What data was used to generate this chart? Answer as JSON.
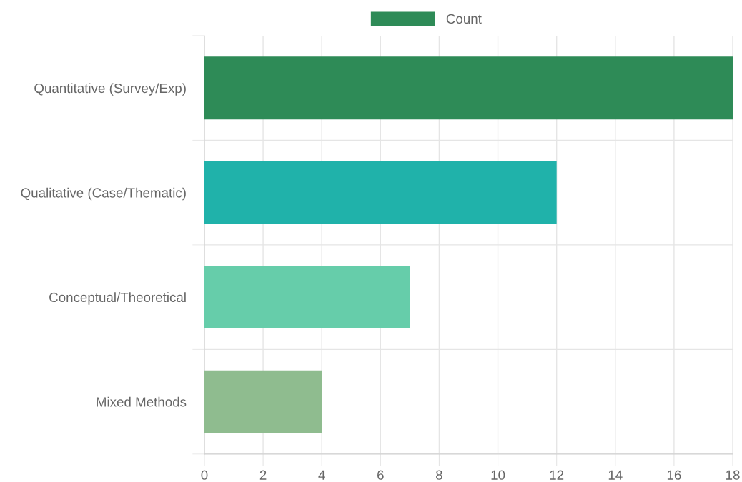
{
  "chart_data": {
    "type": "bar",
    "orientation": "horizontal",
    "categories": [
      "Quantitative (Survey/Exp)",
      "Qualitative (Case/Thematic)",
      "Conceptual/Theoretical",
      "Mixed Methods"
    ],
    "series": [
      {
        "name": "Count",
        "colors": [
          "#2e8b57",
          "#20b2aa",
          "#66cdaa",
          "#8fbc8f"
        ],
        "values": [
          18,
          12,
          7,
          4
        ]
      }
    ],
    "xlim": [
      0,
      18
    ],
    "xticks": [
      0,
      2,
      4,
      6,
      8,
      10,
      12,
      14,
      16,
      18
    ],
    "grid": true,
    "legend": "top"
  }
}
